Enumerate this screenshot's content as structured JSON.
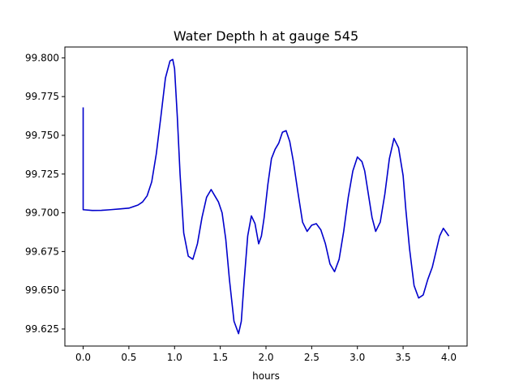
{
  "chart_data": {
    "type": "line",
    "title": "Water Depth h at gauge 545",
    "xlabel": "hours",
    "ylabel": "",
    "xlim": [
      -0.2,
      4.2
    ],
    "ylim": [
      99.614,
      99.807
    ],
    "xticks": [
      0.0,
      0.5,
      1.0,
      1.5,
      2.0,
      2.5,
      3.0,
      3.5,
      4.0
    ],
    "xtick_labels": [
      "0.0",
      "0.5",
      "1.0",
      "1.5",
      "2.0",
      "2.5",
      "3.0",
      "3.5",
      "4.0"
    ],
    "yticks": [
      99.625,
      99.65,
      99.675,
      99.7,
      99.725,
      99.75,
      99.775,
      99.8
    ],
    "ytick_labels": [
      "99.625",
      "99.650",
      "99.675",
      "99.700",
      "99.725",
      "99.750",
      "99.775",
      "99.800"
    ],
    "grid": false,
    "series": [
      {
        "color": "#0000cc",
        "x": [
          0.0,
          0.0,
          0.0,
          0.1,
          0.2,
          0.3,
          0.4,
          0.5,
          0.6,
          0.65,
          0.7,
          0.75,
          0.8,
          0.85,
          0.9,
          0.95,
          0.98,
          1.0,
          1.03,
          1.06,
          1.1,
          1.15,
          1.2,
          1.25,
          1.3,
          1.35,
          1.4,
          1.44,
          1.48,
          1.52,
          1.56,
          1.6,
          1.65,
          1.7,
          1.73,
          1.76,
          1.8,
          1.84,
          1.88,
          1.92,
          1.95,
          1.98,
          2.02,
          2.06,
          2.1,
          2.14,
          2.18,
          2.22,
          2.26,
          2.3,
          2.35,
          2.4,
          2.45,
          2.5,
          2.55,
          2.6,
          2.65,
          2.7,
          2.75,
          2.8,
          2.85,
          2.9,
          2.95,
          3.0,
          3.05,
          3.08,
          3.12,
          3.16,
          3.2,
          3.25,
          3.3,
          3.35,
          3.4,
          3.45,
          3.5,
          3.53,
          3.57,
          3.62,
          3.67,
          3.72,
          3.77,
          3.82,
          3.86,
          3.9,
          3.94,
          4.0
        ],
        "y": [
          99.768,
          99.735,
          99.702,
          99.7015,
          99.7016,
          99.702,
          99.7025,
          99.703,
          99.705,
          99.707,
          99.711,
          99.72,
          99.738,
          99.762,
          99.787,
          99.798,
          99.799,
          99.793,
          99.762,
          99.725,
          99.687,
          99.672,
          99.67,
          99.68,
          99.697,
          99.71,
          99.715,
          99.711,
          99.707,
          99.7,
          99.683,
          99.657,
          99.63,
          99.622,
          99.63,
          99.655,
          99.685,
          99.698,
          99.693,
          99.68,
          99.685,
          99.697,
          99.718,
          99.735,
          99.741,
          99.745,
          99.752,
          99.753,
          99.746,
          99.733,
          99.713,
          99.694,
          99.688,
          99.692,
          99.693,
          99.689,
          99.68,
          99.667,
          99.662,
          99.67,
          99.688,
          99.71,
          99.727,
          99.736,
          99.733,
          99.727,
          99.712,
          99.697,
          99.688,
          99.694,
          99.712,
          99.735,
          99.748,
          99.742,
          99.724,
          99.702,
          99.677,
          99.653,
          99.645,
          99.647,
          99.657,
          99.665,
          99.675,
          99.685,
          99.69,
          99.685
        ]
      }
    ]
  }
}
